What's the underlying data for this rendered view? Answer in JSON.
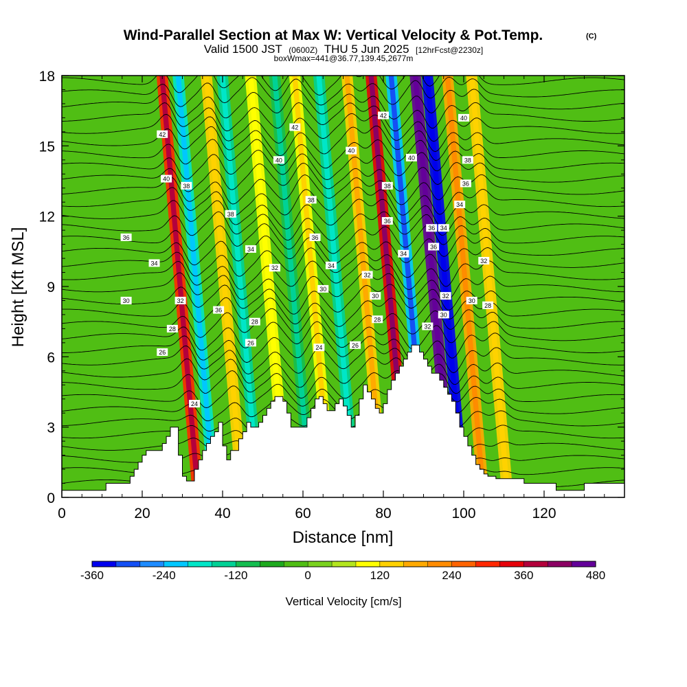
{
  "title": {
    "main": "Wind-Parallel Section at Max W: Vertical Velocity & Pot.Temp.",
    "copyright": "(C)",
    "line2_a": "Valid 1500 JST",
    "line2_b": "(0600Z)",
    "line2_c": "THU 5 Jun 2025",
    "line2_d": "[12hrFcst@2230z]",
    "line3": "boxWmax=441@36.77,139.45,2677m"
  },
  "chart_data": {
    "type": "heatmap",
    "xlabel": "Distance [nm]",
    "ylabel": "Height [Kft MSL]",
    "xlim": [
      0,
      140
    ],
    "ylim": [
      0,
      18
    ],
    "x_ticks": [
      "0",
      "20",
      "40",
      "60",
      "80",
      "100",
      "120"
    ],
    "y_ticks": [
      "0",
      "3",
      "6",
      "9",
      "12",
      "15",
      "18"
    ],
    "colorbar": {
      "title": "Vertical Velocity [cm/s]",
      "tick_labels": [
        "-360",
        "-240",
        "-120",
        "0",
        "120",
        "240",
        "360",
        "480"
      ],
      "levels": [
        -360,
        480
      ],
      "colors": [
        "#0000ee",
        "#1450f5",
        "#1e8cff",
        "#00c8ff",
        "#00e6c8",
        "#00d296",
        "#14be50",
        "#1eaa1e",
        "#50be14",
        "#7ad21e",
        "#b4e61e",
        "#ffff00",
        "#ffd200",
        "#ffaa00",
        "#ff8c00",
        "#ff6400",
        "#ff2800",
        "#e6000a",
        "#b4003c",
        "#8c0064",
        "#64009a"
      ]
    },
    "updraft_columns": [
      {
        "x": 29,
        "w": 300,
        "sign": 1
      },
      {
        "x": 33,
        "w": -180,
        "sign": -1
      },
      {
        "x": 40,
        "w": 120,
        "sign": 1
      },
      {
        "x": 44,
        "w": -150,
        "sign": -1
      },
      {
        "x": 51,
        "w": 80,
        "sign": 1
      },
      {
        "x": 57,
        "w": -120,
        "sign": -1
      },
      {
        "x": 62,
        "w": 100,
        "sign": 1
      },
      {
        "x": 68,
        "w": -130,
        "sign": -1
      },
      {
        "x": 75,
        "w": 140,
        "sign": 1
      },
      {
        "x": 81,
        "w": 330,
        "sign": 1
      },
      {
        "x": 86,
        "w": -240,
        "sign": -1
      },
      {
        "x": 92,
        "w": 441,
        "sign": 1
      },
      {
        "x": 95,
        "w": -360,
        "sign": -1
      },
      {
        "x": 100,
        "w": 160,
        "sign": 1
      },
      {
        "x": 106,
        "w": 120,
        "sign": 1
      }
    ],
    "terrain_kft": [
      0.3,
      0.3,
      0.3,
      0.3,
      0.3,
      0.3,
      0.3,
      0.3,
      0.3,
      0.3,
      0.3,
      0.6,
      0.6,
      0.6,
      0.6,
      0.6,
      0.6,
      0.9,
      1.2,
      1.5,
      1.8,
      2.0,
      2.0,
      2.0,
      2.0,
      2.3,
      2.6,
      3.0,
      3.0,
      1.8,
      0.9,
      0.7,
      0.7,
      1.2,
      1.6,
      2.0,
      2.3,
      2.6,
      2.8,
      3.2,
      2.2,
      1.6,
      2.0,
      2.0,
      2.5,
      2.8,
      3.2,
      3.0,
      3.0,
      3.2,
      3.5,
      3.8,
      4.1,
      4.3,
      4.3,
      4.1,
      3.6,
      3.0,
      3.0,
      3.0,
      3.0,
      3.4,
      3.8,
      4.2,
      4.3,
      4.0,
      3.7,
      3.7,
      4.0,
      4.2,
      3.9,
      3.5,
      3.0,
      3.5,
      4.2,
      4.8,
      4.5,
      4.2,
      3.8,
      3.6,
      4.0,
      4.6,
      5.0,
      5.3,
      5.6,
      5.9,
      6.2,
      6.5,
      6.5,
      6.2,
      5.9,
      5.6,
      5.3,
      5.3,
      5.0,
      4.7,
      4.4,
      4.1,
      3.6,
      3.0,
      2.6,
      2.2,
      1.8,
      1.4,
      1.2,
      1.0,
      0.9,
      0.9,
      0.8,
      0.8,
      0.8,
      0.8,
      0.8,
      0.8,
      0.8,
      0.6,
      0.6,
      0.6,
      0.6,
      0.6,
      0.6,
      0.6,
      0.6,
      0.3,
      0.3,
      0.3,
      0.3,
      0.3,
      0.3,
      0.3,
      0.6,
      0.6,
      0.6,
      0.6,
      0.6,
      0.6,
      0.6,
      0.6,
      0.6,
      0.6,
      0.6
    ],
    "theta_levels": [
      24,
      26,
      28,
      30,
      32,
      34,
      36,
      38,
      40,
      42
    ],
    "theta_labels": [
      {
        "text": "42",
        "x": 25,
        "y": 15.5
      },
      {
        "text": "40",
        "x": 26,
        "y": 13.6
      },
      {
        "text": "38",
        "x": 31,
        "y": 13.3
      },
      {
        "text": "36",
        "x": 16,
        "y": 11.1
      },
      {
        "text": "34",
        "x": 23,
        "y": 10.0
      },
      {
        "text": "32",
        "x": 29.5,
        "y": 8.4
      },
      {
        "text": "30",
        "x": 16,
        "y": 8.4
      },
      {
        "text": "28",
        "x": 27.5,
        "y": 7.2
      },
      {
        "text": "26",
        "x": 25,
        "y": 6.2
      },
      {
        "text": "24",
        "x": 33,
        "y": 4.0
      },
      {
        "text": "38",
        "x": 42,
        "y": 12.1
      },
      {
        "text": "36",
        "x": 39,
        "y": 8.0
      },
      {
        "text": "34",
        "x": 47,
        "y": 10.6
      },
      {
        "text": "32",
        "x": 53,
        "y": 9.8
      },
      {
        "text": "28",
        "x": 48,
        "y": 7.5
      },
      {
        "text": "26",
        "x": 47,
        "y": 6.6
      },
      {
        "text": "40",
        "x": 54,
        "y": 14.4
      },
      {
        "text": "42",
        "x": 58,
        "y": 15.8
      },
      {
        "text": "38",
        "x": 62,
        "y": 12.7
      },
      {
        "text": "36",
        "x": 63,
        "y": 11.1
      },
      {
        "text": "34",
        "x": 67,
        "y": 9.9
      },
      {
        "text": "30",
        "x": 65,
        "y": 8.9
      },
      {
        "text": "24",
        "x": 64,
        "y": 6.4
      },
      {
        "text": "40",
        "x": 72,
        "y": 14.8
      },
      {
        "text": "32",
        "x": 76,
        "y": 9.5
      },
      {
        "text": "30",
        "x": 78,
        "y": 8.6
      },
      {
        "text": "28",
        "x": 78.5,
        "y": 7.6
      },
      {
        "text": "26",
        "x": 73,
        "y": 6.5
      },
      {
        "text": "42",
        "x": 80,
        "y": 16.3
      },
      {
        "text": "38",
        "x": 81,
        "y": 13.3
      },
      {
        "text": "36",
        "x": 81,
        "y": 11.8
      },
      {
        "text": "34",
        "x": 85,
        "y": 10.4
      },
      {
        "text": "40",
        "x": 87,
        "y": 14.5
      },
      {
        "text": "36",
        "x": 92,
        "y": 11.5
      },
      {
        "text": "36",
        "x": 92.5,
        "y": 10.7
      },
      {
        "text": "34",
        "x": 95,
        "y": 11.5
      },
      {
        "text": "32",
        "x": 91,
        "y": 7.3
      },
      {
        "text": "32",
        "x": 95.5,
        "y": 8.6
      },
      {
        "text": "30",
        "x": 95,
        "y": 7.8
      },
      {
        "text": "40",
        "x": 100,
        "y": 16.2
      },
      {
        "text": "38",
        "x": 101,
        "y": 14.4
      },
      {
        "text": "36",
        "x": 100.5,
        "y": 13.4
      },
      {
        "text": "34",
        "x": 99,
        "y": 12.5
      },
      {
        "text": "32",
        "x": 105,
        "y": 10.1
      },
      {
        "text": "30",
        "x": 102,
        "y": 8.4
      },
      {
        "text": "28",
        "x": 106,
        "y": 8.2
      }
    ]
  }
}
